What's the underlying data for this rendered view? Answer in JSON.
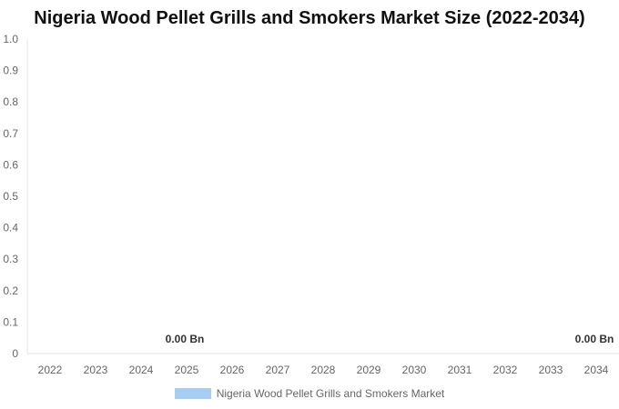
{
  "chart_data": {
    "type": "bar",
    "title": "Nigeria Wood Pellet Grills and Smokers Market Size (2022-2034)",
    "categories": [
      "2022",
      "2023",
      "2024",
      "2025",
      "2026",
      "2027",
      "2028",
      "2029",
      "2030",
      "2031",
      "2032",
      "2033",
      "2034"
    ],
    "series": [
      {
        "name": "Nigeria Wood Pellet Grills and Smokers Market",
        "values": [
          0,
          0,
          0,
          0,
          0,
          0,
          0,
          0,
          0,
          0,
          0,
          0,
          0
        ],
        "color": "#a8cdf5"
      }
    ],
    "yticks": [
      "0",
      "0.1",
      "0.2",
      "0.3",
      "0.4",
      "0.5",
      "0.6",
      "0.7",
      "0.8",
      "0.9",
      "1.0"
    ],
    "ylim": [
      0,
      1.0
    ],
    "data_labels": [
      {
        "category": "2025",
        "text": "0.00 Bn"
      },
      {
        "category": "2034",
        "text": "0.00 Bn"
      }
    ],
    "legend_position": "bottom",
    "grid": false
  }
}
